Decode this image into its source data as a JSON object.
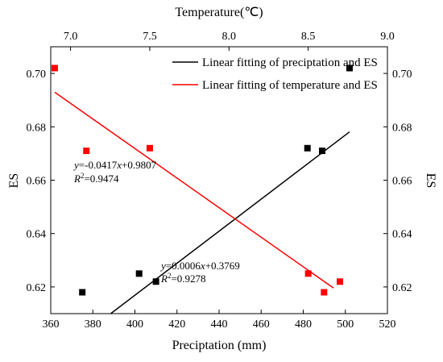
{
  "chart_data": {
    "type": "scatter",
    "title": "",
    "xlabel": "Preciptation (mm)",
    "x2label": "Temperature(℃)",
    "ylabel": "ES",
    "y2label": "ES",
    "xlim": [
      360,
      520
    ],
    "x2lim": [
      6.875,
      9.0
    ],
    "ylim": [
      0.61,
      0.71
    ],
    "xticks": [
      "360",
      "380",
      "400",
      "420",
      "440",
      "460",
      "480",
      "500",
      "520"
    ],
    "x2ticks": [
      "7.0",
      "7.5",
      "8.0",
      "8.5",
      "9.0"
    ],
    "yticks": [
      "0.62",
      "0.64",
      "0.66",
      "0.68",
      "0.70"
    ],
    "legend_position": "top-right",
    "series": [
      {
        "name": "Linear fitting of preciptation and ES",
        "color": "#000000",
        "axis": "bottom",
        "points": [
          [
            375,
            0.618
          ],
          [
            402,
            0.625
          ],
          [
            410,
            0.622
          ],
          [
            482,
            0.672
          ],
          [
            489,
            0.671
          ],
          [
            502,
            0.702
          ]
        ],
        "fit": {
          "slope": 0.0006,
          "intercept": 0.3769,
          "x_range": [
            377,
            502
          ],
          "equation": "y=0.0006x+0.3769",
          "r2_label": "R2=0.9278"
        }
      },
      {
        "name": "Linear fitting of temperature and ES",
        "color": "#ff0000",
        "axis": "top",
        "points": [
          [
            6.9,
            0.702
          ],
          [
            7.1,
            0.671
          ],
          [
            7.5,
            0.672
          ],
          [
            8.5,
            0.625
          ],
          [
            8.6,
            0.618
          ],
          [
            8.7,
            0.622
          ]
        ],
        "fit": {
          "slope": -0.0417,
          "intercept": 0.9807,
          "x_range": [
            6.9,
            8.66
          ],
          "equation": "y=-0.0417x+0.9807",
          "r2_label": "R2=0.9474"
        }
      }
    ]
  }
}
